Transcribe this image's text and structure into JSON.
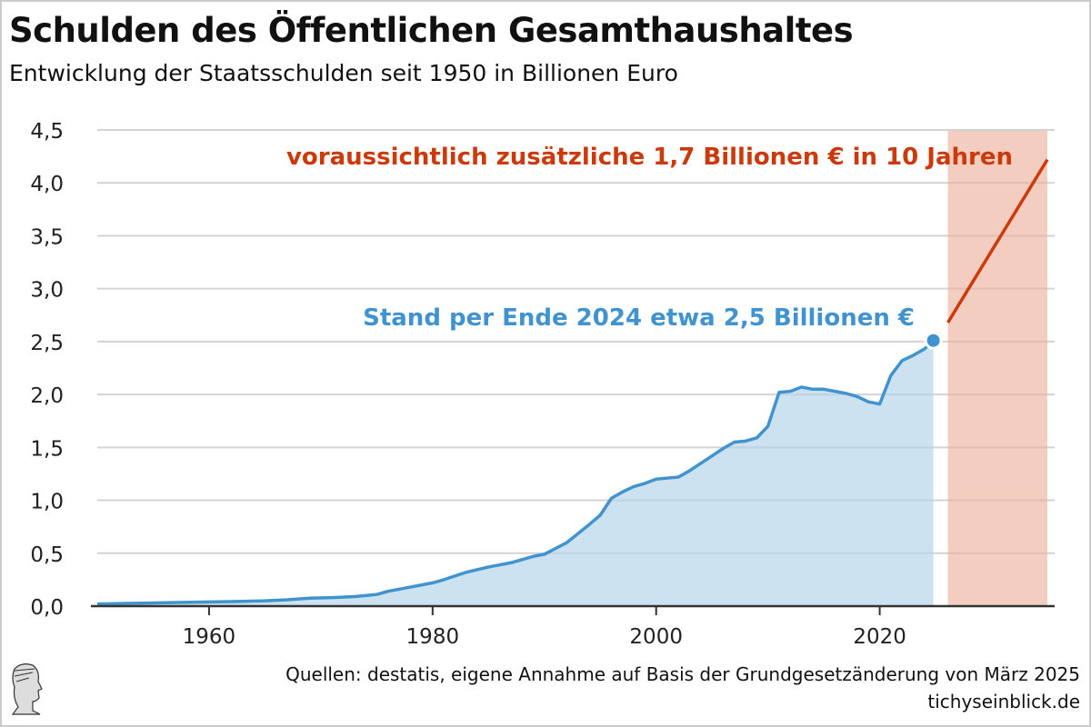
{
  "title": "Schulden des Öffentlichen Gesamthaushaltes",
  "subtitle": "Entwicklung der Staatsschulden seit 1950 in Billionen Euro",
  "source": "Quellen: destatis, eigene Annahme auf Basis der Grundgesetzänderung von März 2025",
  "site": "tichyseinblick.de",
  "chart_data": {
    "type": "area",
    "title": "Schulden des Öffentlichen Gesamthaushaltes",
    "xlim": [
      1950,
      2035
    ],
    "ylim": [
      0,
      4.5
    ],
    "x_ticks": [
      1960,
      1980,
      2000,
      2020
    ],
    "y_ticks": [
      "0,0",
      "0,5",
      "1,0",
      "1,5",
      "2,0",
      "2,5",
      "3,0",
      "3,5",
      "4,0",
      "4,5"
    ],
    "grid": "horizontal",
    "colors": {
      "actual": "#4193cf",
      "actual_fill": "#cde2f1",
      "projection": "#cc3a0c",
      "projection_fill": "#f2cdc0"
    },
    "series": [
      {
        "x": [
          1950,
          1955,
          1960,
          1963,
          1965,
          1967,
          1969,
          1971,
          1973,
          1975,
          1976,
          1978,
          1980,
          1981,
          1983,
          1985,
          1987,
          1988,
          1989,
          1990,
          1992,
          1994,
          1995,
          1996,
          1997,
          1998,
          1999,
          2000,
          2002,
          2003,
          2004,
          2005,
          2006,
          2007,
          2008,
          2009,
          2010,
          2011,
          2012,
          2013,
          2014,
          2015,
          2016,
          2017,
          2018,
          2019,
          2020,
          2021,
          2022,
          2023,
          2024,
          2024.8
        ],
        "y": [
          0.02,
          0.03,
          0.04,
          0.045,
          0.05,
          0.06,
          0.075,
          0.08,
          0.09,
          0.11,
          0.14,
          0.18,
          0.22,
          0.25,
          0.32,
          0.37,
          0.41,
          0.44,
          0.47,
          0.49,
          0.6,
          0.77,
          0.86,
          1.02,
          1.08,
          1.13,
          1.16,
          1.2,
          1.22,
          1.28,
          1.35,
          1.42,
          1.49,
          1.55,
          1.56,
          1.59,
          1.7,
          2.02,
          2.03,
          2.07,
          2.05,
          2.05,
          2.03,
          2.01,
          1.98,
          1.93,
          1.91,
          2.18,
          2.32,
          2.37,
          2.43,
          2.51
        ]
      },
      {
        "x": [
          2026.1,
          2035
        ],
        "y": [
          2.68,
          4.22
        ]
      }
    ],
    "annotations": [
      {
        "text": "Stand per Ende 2024 etwa 2,5 Billionen €",
        "color": "#4193cf"
      },
      {
        "text": "voraussichtlich zusätzliche 1,7 Billionen € in 10 Jahren",
        "color": "#cc3a0c"
      }
    ]
  }
}
